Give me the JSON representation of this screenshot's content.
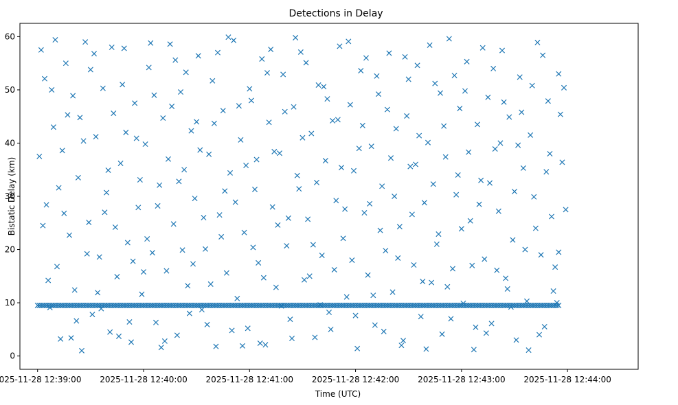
{
  "chart_data": {
    "type": "scatter",
    "title": "Detections in Delay",
    "xlabel": "Time (UTC)",
    "ylabel": "Bistatic Delay (km)",
    "x_axis_kind": "time",
    "x_range_seconds_past_12_39_00": [
      -10,
      340
    ],
    "ylim": [
      -2.5,
      62.5
    ],
    "x_ticks": [
      {
        "value": 0,
        "label": "2025-11-28 12:39:00"
      },
      {
        "value": 60,
        "label": "2025-11-28 12:40:00"
      },
      {
        "value": 120,
        "label": "2025-11-28 12:41:00"
      },
      {
        "value": 180,
        "label": "2025-11-28 12:42:00"
      },
      {
        "value": 240,
        "label": "2025-11-28 12:43:00"
      },
      {
        "value": 300,
        "label": "2025-11-28 12:44:00"
      }
    ],
    "y_ticks": [
      {
        "value": 0,
        "label": "0"
      },
      {
        "value": 10,
        "label": "10"
      },
      {
        "value": 20,
        "label": "20"
      },
      {
        "value": 30,
        "label": "30"
      },
      {
        "value": 40,
        "label": "40"
      },
      {
        "value": 50,
        "label": "50"
      },
      {
        "value": 60,
        "label": "60"
      }
    ],
    "marker": "x",
    "marker_color": "#1f77b4",
    "grid": false,
    "series": [
      {
        "description": "approx. uniform clutter 12:39:00–12:43:55, delay 0–60 km",
        "points": [
          [
            2,
            57.5
          ],
          [
            4,
            52.1
          ],
          [
            5,
            28.4
          ],
          [
            7,
            9.1
          ],
          [
            9,
            43.0
          ],
          [
            11,
            16.8
          ],
          [
            13,
            3.2
          ],
          [
            14,
            38.6
          ],
          [
            16,
            55.0
          ],
          [
            18,
            22.7
          ],
          [
            20,
            48.9
          ],
          [
            21,
            12.4
          ],
          [
            23,
            33.5
          ],
          [
            25,
            1.0
          ],
          [
            27,
            59.0
          ],
          [
            29,
            25.1
          ],
          [
            31,
            7.8
          ],
          [
            33,
            41.2
          ],
          [
            35,
            18.6
          ],
          [
            37,
            50.3
          ],
          [
            39,
            30.7
          ],
          [
            41,
            4.5
          ],
          [
            43,
            45.6
          ],
          [
            45,
            14.9
          ],
          [
            47,
            36.2
          ],
          [
            49,
            57.8
          ],
          [
            51,
            21.3
          ],
          [
            53,
            2.6
          ],
          [
            55,
            47.5
          ],
          [
            57,
            27.9
          ],
          [
            59,
            11.6
          ],
          [
            61,
            39.8
          ],
          [
            63,
            54.2
          ],
          [
            65,
            19.4
          ],
          [
            67,
            6.3
          ],
          [
            69,
            32.1
          ],
          [
            71,
            44.7
          ],
          [
            73,
            16.0
          ],
          [
            75,
            58.6
          ],
          [
            77,
            24.8
          ],
          [
            79,
            3.9
          ],
          [
            81,
            49.6
          ],
          [
            83,
            35.0
          ],
          [
            85,
            13.2
          ],
          [
            87,
            42.3
          ],
          [
            89,
            29.6
          ],
          [
            91,
            56.4
          ],
          [
            93,
            8.7
          ],
          [
            95,
            20.1
          ],
          [
            97,
            37.9
          ],
          [
            99,
            51.7
          ],
          [
            101,
            1.8
          ],
          [
            103,
            26.5
          ],
          [
            105,
            46.1
          ],
          [
            107,
            15.6
          ],
          [
            109,
            34.4
          ],
          [
            111,
            59.3
          ],
          [
            113,
            10.8
          ],
          [
            115,
            40.6
          ],
          [
            117,
            23.2
          ],
          [
            119,
            5.2
          ],
          [
            121,
            48.0
          ],
          [
            123,
            31.3
          ],
          [
            125,
            17.5
          ],
          [
            127,
            55.8
          ],
          [
            129,
            2.1
          ],
          [
            131,
            43.9
          ],
          [
            133,
            28.0
          ],
          [
            135,
            12.9
          ],
          [
            137,
            38.1
          ],
          [
            139,
            52.9
          ],
          [
            141,
            20.7
          ],
          [
            143,
            6.9
          ],
          [
            145,
            46.8
          ],
          [
            147,
            33.9
          ],
          [
            149,
            57.1
          ],
          [
            151,
            14.3
          ],
          [
            153,
            25.7
          ],
          [
            155,
            41.8
          ],
          [
            157,
            3.5
          ],
          [
            159,
            50.9
          ],
          [
            161,
            18.9
          ],
          [
            163,
            36.7
          ],
          [
            165,
            8.2
          ],
          [
            167,
            44.2
          ],
          [
            169,
            29.2
          ],
          [
            171,
            58.2
          ],
          [
            173,
            22.1
          ],
          [
            175,
            11.1
          ],
          [
            177,
            47.2
          ],
          [
            179,
            34.8
          ],
          [
            181,
            1.4
          ],
          [
            183,
            53.6
          ],
          [
            185,
            26.9
          ],
          [
            187,
            15.2
          ],
          [
            189,
            39.4
          ],
          [
            191,
            5.8
          ],
          [
            193,
            49.2
          ],
          [
            195,
            31.9
          ],
          [
            197,
            19.8
          ],
          [
            199,
            56.9
          ],
          [
            201,
            12.0
          ],
          [
            203,
            42.7
          ],
          [
            205,
            24.3
          ],
          [
            207,
            2.9
          ],
          [
            209,
            45.1
          ],
          [
            211,
            35.6
          ],
          [
            213,
            17.1
          ],
          [
            215,
            54.6
          ],
          [
            217,
            7.4
          ],
          [
            219,
            28.8
          ],
          [
            221,
            40.1
          ],
          [
            223,
            13.8
          ],
          [
            225,
            51.2
          ],
          [
            227,
            22.9
          ],
          [
            229,
            4.1
          ],
          [
            231,
            37.4
          ],
          [
            233,
            59.6
          ],
          [
            235,
            16.4
          ],
          [
            237,
            30.3
          ],
          [
            239,
            46.5
          ],
          [
            241,
            9.9
          ],
          [
            243,
            55.3
          ],
          [
            245,
            25.4
          ],
          [
            247,
            1.2
          ],
          [
            249,
            43.5
          ],
          [
            251,
            33.0
          ],
          [
            253,
            18.2
          ],
          [
            255,
            48.6
          ],
          [
            257,
            6.1
          ],
          [
            259,
            38.9
          ],
          [
            261,
            27.2
          ],
          [
            263,
            57.4
          ],
          [
            265,
            14.6
          ],
          [
            267,
            44.9
          ],
          [
            269,
            21.8
          ],
          [
            271,
            3.0
          ],
          [
            273,
            52.4
          ],
          [
            275,
            35.3
          ],
          [
            277,
            10.3
          ],
          [
            279,
            41.5
          ],
          [
            281,
            29.9
          ],
          [
            283,
            58.9
          ],
          [
            285,
            19.0
          ],
          [
            287,
            5.5
          ],
          [
            289,
            47.9
          ],
          [
            291,
            26.2
          ],
          [
            293,
            16.7
          ],
          [
            295,
            53.0
          ],
          [
            297,
            36.4
          ],
          [
            3,
            24.5
          ],
          [
            8,
            50.0
          ],
          [
            12,
            31.6
          ],
          [
            17,
            45.3
          ],
          [
            22,
            6.6
          ],
          [
            26,
            40.4
          ],
          [
            30,
            53.8
          ],
          [
            34,
            11.9
          ],
          [
            38,
            27.0
          ],
          [
            42,
            58.0
          ],
          [
            46,
            3.7
          ],
          [
            50,
            42.0
          ],
          [
            54,
            17.8
          ],
          [
            58,
            33.1
          ],
          [
            62,
            22.0
          ],
          [
            66,
            49.0
          ],
          [
            70,
            1.6
          ],
          [
            74,
            37.0
          ],
          [
            78,
            55.6
          ],
          [
            82,
            19.9
          ],
          [
            86,
            8.0
          ],
          [
            90,
            44.0
          ],
          [
            94,
            26.0
          ],
          [
            98,
            13.5
          ],
          [
            102,
            57.0
          ],
          [
            106,
            31.0
          ],
          [
            110,
            4.8
          ],
          [
            114,
            47.0
          ],
          [
            118,
            35.8
          ],
          [
            122,
            20.4
          ],
          [
            126,
            2.4
          ],
          [
            130,
            53.2
          ],
          [
            134,
            38.4
          ],
          [
            138,
            9.4
          ],
          [
            142,
            25.9
          ],
          [
            146,
            59.8
          ],
          [
            150,
            41.0
          ],
          [
            154,
            15.0
          ],
          [
            158,
            32.6
          ],
          [
            162,
            50.6
          ],
          [
            166,
            5.0
          ],
          [
            170,
            44.4
          ],
          [
            174,
            27.6
          ],
          [
            178,
            18.0
          ],
          [
            182,
            39.0
          ],
          [
            186,
            56.0
          ],
          [
            190,
            11.4
          ],
          [
            194,
            23.6
          ],
          [
            198,
            46.3
          ],
          [
            202,
            30.0
          ],
          [
            206,
            2.0
          ],
          [
            210,
            52.0
          ],
          [
            214,
            36.0
          ],
          [
            218,
            14.0
          ],
          [
            222,
            58.4
          ],
          [
            226,
            21.0
          ],
          [
            230,
            43.2
          ],
          [
            234,
            7.0
          ],
          [
            238,
            34.0
          ],
          [
            242,
            49.8
          ],
          [
            246,
            17.0
          ],
          [
            250,
            28.5
          ],
          [
            254,
            4.3
          ],
          [
            258,
            54.0
          ],
          [
            262,
            40.0
          ],
          [
            266,
            12.6
          ],
          [
            270,
            30.9
          ],
          [
            274,
            45.8
          ],
          [
            278,
            1.1
          ],
          [
            282,
            24.0
          ],
          [
            286,
            56.5
          ],
          [
            290,
            38.0
          ],
          [
            294,
            10.0
          ],
          [
            298,
            50.4
          ],
          [
            1,
            37.5
          ],
          [
            6,
            14.2
          ],
          [
            10,
            59.4
          ],
          [
            15,
            26.8
          ],
          [
            19,
            3.4
          ],
          [
            24,
            44.8
          ],
          [
            28,
            19.2
          ],
          [
            32,
            56.8
          ],
          [
            36,
            8.9
          ],
          [
            40,
            34.9
          ],
          [
            44,
            24.2
          ],
          [
            48,
            51.0
          ],
          [
            52,
            6.4
          ],
          [
            56,
            40.9
          ],
          [
            60,
            15.8
          ],
          [
            64,
            58.8
          ],
          [
            68,
            28.2
          ],
          [
            72,
            2.8
          ],
          [
            76,
            46.9
          ],
          [
            80,
            32.8
          ],
          [
            84,
            53.3
          ],
          [
            88,
            17.3
          ],
          [
            92,
            38.7
          ],
          [
            96,
            5.9
          ],
          [
            100,
            43.7
          ],
          [
            104,
            22.4
          ],
          [
            108,
            59.9
          ],
          [
            112,
            28.9
          ],
          [
            116,
            1.9
          ],
          [
            120,
            50.2
          ],
          [
            124,
            36.9
          ],
          [
            128,
            14.7
          ],
          [
            132,
            57.6
          ],
          [
            136,
            24.6
          ],
          [
            140,
            45.9
          ],
          [
            144,
            3.3
          ],
          [
            148,
            31.4
          ],
          [
            152,
            55.1
          ],
          [
            156,
            20.9
          ],
          [
            160,
            9.6
          ],
          [
            164,
            48.3
          ],
          [
            168,
            16.2
          ],
          [
            172,
            35.4
          ],
          [
            176,
            59.1
          ],
          [
            180,
            7.6
          ],
          [
            184,
            43.3
          ],
          [
            188,
            28.6
          ],
          [
            192,
            52.6
          ],
          [
            196,
            4.6
          ],
          [
            200,
            37.2
          ],
          [
            204,
            18.4
          ],
          [
            208,
            56.2
          ],
          [
            212,
            26.6
          ],
          [
            216,
            41.4
          ],
          [
            220,
            1.3
          ],
          [
            224,
            32.3
          ],
          [
            228,
            49.4
          ],
          [
            232,
            13.0
          ],
          [
            236,
            52.7
          ],
          [
            240,
            23.9
          ],
          [
            244,
            38.3
          ],
          [
            248,
            5.4
          ],
          [
            252,
            57.9
          ],
          [
            256,
            32.5
          ],
          [
            260,
            16.1
          ],
          [
            264,
            47.7
          ],
          [
            268,
            9.2
          ],
          [
            272,
            39.6
          ],
          [
            276,
            20.0
          ],
          [
            280,
            50.8
          ],
          [
            284,
            4.0
          ],
          [
            288,
            34.6
          ],
          [
            292,
            12.2
          ],
          [
            296,
            45.4
          ],
          [
            299,
            27.5
          ],
          [
            295,
            19.5
          ]
        ]
      },
      {
        "description": "dense constant-delay band ≈ 9.5 km from 12:39:00 to 12:43:55",
        "band_delay_km": 9.5,
        "band_start_seconds": 0,
        "band_end_seconds": 295,
        "band_step_seconds": 1
      }
    ]
  }
}
